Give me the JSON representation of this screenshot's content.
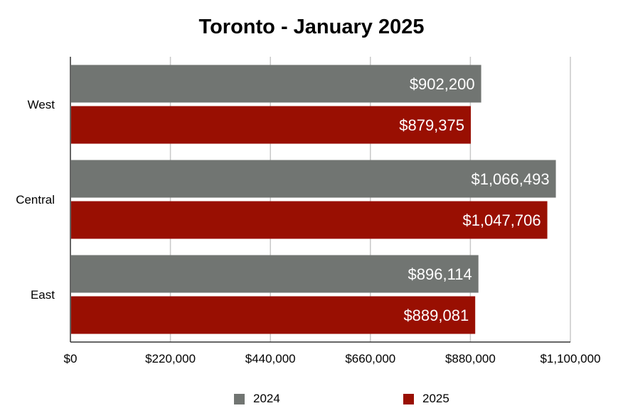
{
  "chart_data": {
    "type": "bar",
    "orientation": "horizontal",
    "title": "Toronto - January 2025",
    "categories": [
      "West",
      "Central",
      "East"
    ],
    "series": [
      {
        "name": "2024",
        "color": "#717572",
        "values": [
          902200,
          1066493,
          896114
        ],
        "value_labels": [
          "$902,200",
          "$1,066,493",
          "$896,114"
        ]
      },
      {
        "name": "2025",
        "color": "#990f02",
        "values": [
          879375,
          1047706,
          889081
        ],
        "value_labels": [
          "$879,375",
          "$1,047,706",
          "$889,081"
        ]
      }
    ],
    "xlim": [
      0,
      1100000
    ],
    "x_ticks": [
      0,
      220000,
      440000,
      660000,
      880000,
      1100000
    ],
    "x_tick_labels": [
      "$0",
      "$220,000",
      "$440,000",
      "$660,000",
      "$880,000",
      "$1,100,000"
    ],
    "grid": true,
    "legend_position": "bottom"
  }
}
